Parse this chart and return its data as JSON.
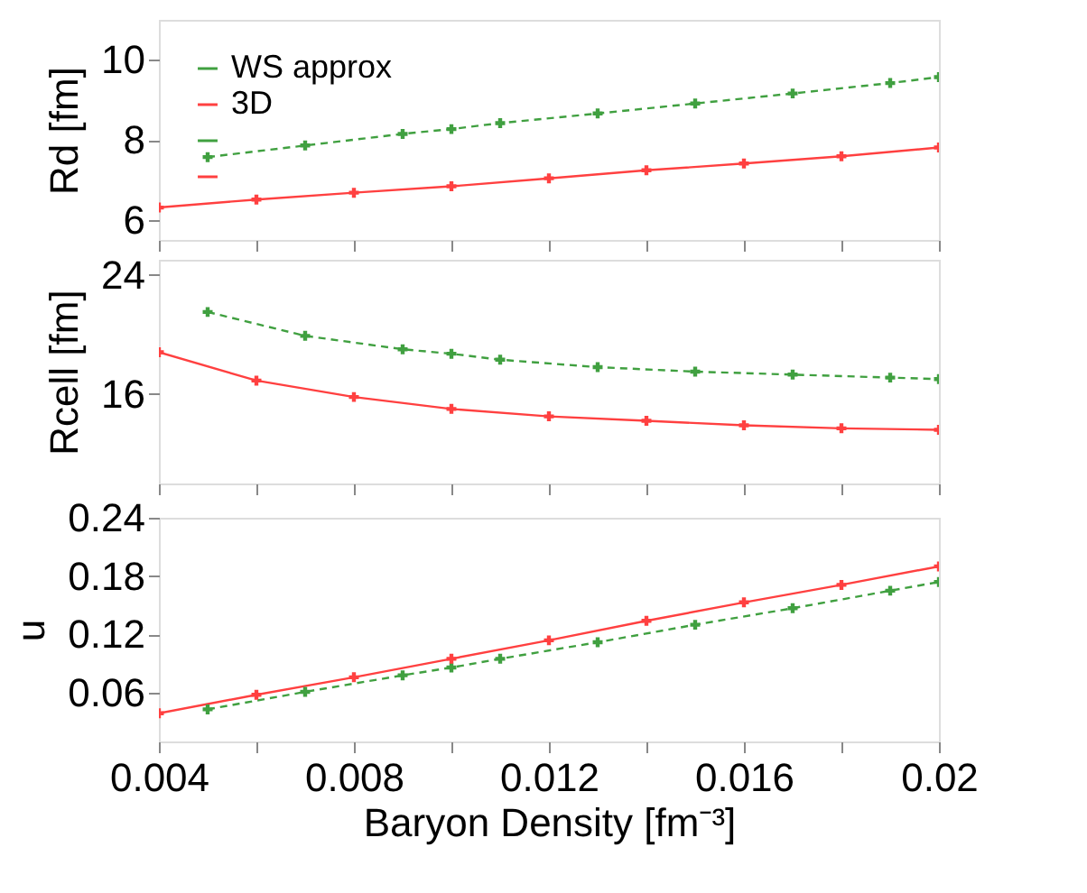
{
  "chart_data": [
    {
      "type": "line",
      "ylabel": "Rd [fm]",
      "legend": "top left",
      "grid": false,
      "tick_labels": "y",
      "marker": "cross",
      "xlim": [
        0.004,
        0.02
      ],
      "xticks": [
        {
          "value": 0.004,
          "label": null
        },
        {
          "value": 0.006,
          "label": null
        },
        {
          "value": 0.008,
          "label": null
        },
        {
          "value": 0.01,
          "label": null
        },
        {
          "value": 0.012,
          "label": null
        },
        {
          "value": 0.014,
          "label": null
        },
        {
          "value": 0.016,
          "label": null
        },
        {
          "value": 0.018,
          "label": null
        },
        {
          "value": 0.02,
          "label": null
        }
      ],
      "ylim": [
        5.5,
        11
      ],
      "yticks": [
        6,
        8,
        10
      ],
      "series": [
        {
          "name": "WS approx",
          "color": "#40a040",
          "line_style": "dashed",
          "x": [
            0.005,
            0.007,
            0.009,
            0.01,
            0.011,
            0.013,
            0.015,
            0.017,
            0.019,
            0.02
          ],
          "values": [
            7.57,
            7.86,
            8.15,
            8.27,
            8.42,
            8.66,
            8.91,
            9.16,
            9.42,
            9.57
          ]
        },
        {
          "name": "3D",
          "color": "#ff4040",
          "line_style": "solid",
          "x": [
            0.004,
            0.006,
            0.008,
            0.01,
            0.012,
            0.014,
            0.016,
            0.018,
            0.02
          ],
          "values": [
            6.31,
            6.51,
            6.68,
            6.84,
            7.04,
            7.24,
            7.41,
            7.59,
            7.81
          ]
        }
      ]
    },
    {
      "type": "line",
      "ylabel": "Rcell [fm]",
      "grid": false,
      "tick_labels": "y",
      "marker": "cross",
      "xlim": [
        0.004,
        0.02
      ],
      "xticks": [
        {
          "value": 0.004,
          "label": null
        },
        {
          "value": 0.006,
          "label": null
        },
        {
          "value": 0.008,
          "label": null
        },
        {
          "value": 0.01,
          "label": null
        },
        {
          "value": 0.012,
          "label": null
        },
        {
          "value": 0.014,
          "label": null
        },
        {
          "value": 0.016,
          "label": null
        },
        {
          "value": 0.018,
          "label": null
        },
        {
          "value": 0.02,
          "label": null
        }
      ],
      "ylim": [
        10,
        25
      ],
      "yticks": [
        16,
        24
      ],
      "series": [
        {
          "color": "#40a040",
          "line_style": "dashed",
          "x": [
            0.005,
            0.007,
            0.009,
            0.01,
            0.011,
            0.013,
            0.015,
            0.017,
            0.019,
            0.02
          ],
          "values": [
            21.5,
            19.9,
            19.0,
            18.7,
            18.3,
            17.8,
            17.5,
            17.3,
            17.1,
            17.0
          ]
        },
        {
          "color": "#ff4040",
          "line_style": "solid",
          "x": [
            0.004,
            0.006,
            0.008,
            0.01,
            0.012,
            0.014,
            0.016,
            0.018,
            0.02
          ],
          "values": [
            18.8,
            16.9,
            15.8,
            15.0,
            14.5,
            14.2,
            13.9,
            13.7,
            13.6
          ]
        }
      ]
    },
    {
      "type": "line",
      "ylabel": "u",
      "xlabel": "Baryon Density [fm⁻³]",
      "grid": false,
      "marker": "cross",
      "xlim": [
        0.004,
        0.02
      ],
      "xticks": [
        0.004,
        {
          "value": 0.006,
          "label": null
        },
        0.008,
        {
          "value": 0.01,
          "label": null
        },
        0.012,
        {
          "value": 0.014,
          "label": null
        },
        0.016,
        {
          "value": 0.018,
          "label": null
        },
        0.02
      ],
      "ylim": [
        0.01,
        0.24
      ],
      "yticks": [
        0.06,
        0.12,
        0.18,
        0.24
      ],
      "series": [
        {
          "color": "#40a040",
          "line_style": "dashed",
          "x": [
            0.005,
            0.007,
            0.009,
            0.01,
            0.011,
            0.013,
            0.015,
            0.017,
            0.019,
            0.02
          ],
          "values": [
            0.043,
            0.061,
            0.078,
            0.086,
            0.095,
            0.112,
            0.13,
            0.147,
            0.165,
            0.174
          ]
        },
        {
          "color": "#ff4040",
          "line_style": "solid",
          "x": [
            0.004,
            0.006,
            0.008,
            0.01,
            0.012,
            0.014,
            0.016,
            0.018,
            0.02
          ],
          "values": [
            0.039,
            0.058,
            0.076,
            0.095,
            0.114,
            0.134,
            0.153,
            0.171,
            0.19
          ]
        }
      ]
    }
  ]
}
